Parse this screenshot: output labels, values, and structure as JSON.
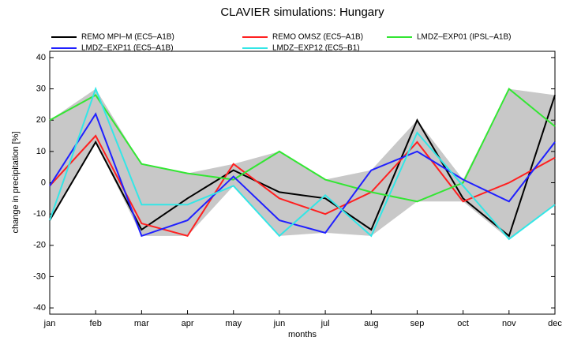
{
  "chart_data": {
    "type": "line",
    "title": "CLAVIER simulations: Hungary",
    "xlabel": "months",
    "ylabel": "change in precipitation [%]",
    "categories": [
      "jan",
      "feb",
      "mar",
      "apr",
      "may",
      "jun",
      "jul",
      "aug",
      "sep",
      "oct",
      "nov",
      "dec"
    ],
    "series": [
      {
        "name": "REMO MPI–M (EC5–A1B)",
        "color": "#000000",
        "values": [
          -12,
          13,
          -15,
          -5,
          4,
          -3,
          -5,
          -15,
          20,
          -5,
          -17,
          28
        ]
      },
      {
        "name": "REMO OMSZ (EC5–A1B)",
        "color": "#ff2020",
        "values": [
          -1,
          15,
          -13,
          -17,
          6,
          -5,
          -10,
          -3,
          13,
          -6,
          0,
          8
        ]
      },
      {
        "name": "LMDZ–EXP01 (IPSL–A1B)",
        "color": "#33e633",
        "values": [
          20,
          28,
          6,
          3,
          1,
          10,
          1,
          -3,
          -6,
          0,
          30,
          18
        ]
      },
      {
        "name": "LMDZ–EXP11 (EC5–A1B)",
        "color": "#2020ff",
        "values": [
          -1,
          22,
          -17,
          -12,
          2,
          -12,
          -16,
          4,
          10,
          1,
          -6,
          13
        ]
      },
      {
        "name": "LMDZ–EXP12 (EC5–B1)",
        "color": "#33e6e6",
        "values": [
          -12,
          30,
          -7,
          -7,
          -1,
          -17,
          -4,
          -17,
          16,
          -1,
          -18,
          -7
        ]
      }
    ],
    "envelope_color": "#c8c8c8",
    "ylim": [
      -42,
      42
    ],
    "yticks": [
      -40,
      -30,
      -20,
      -10,
      0,
      10,
      20,
      30,
      40
    ],
    "grid": false,
    "legend": "top"
  }
}
